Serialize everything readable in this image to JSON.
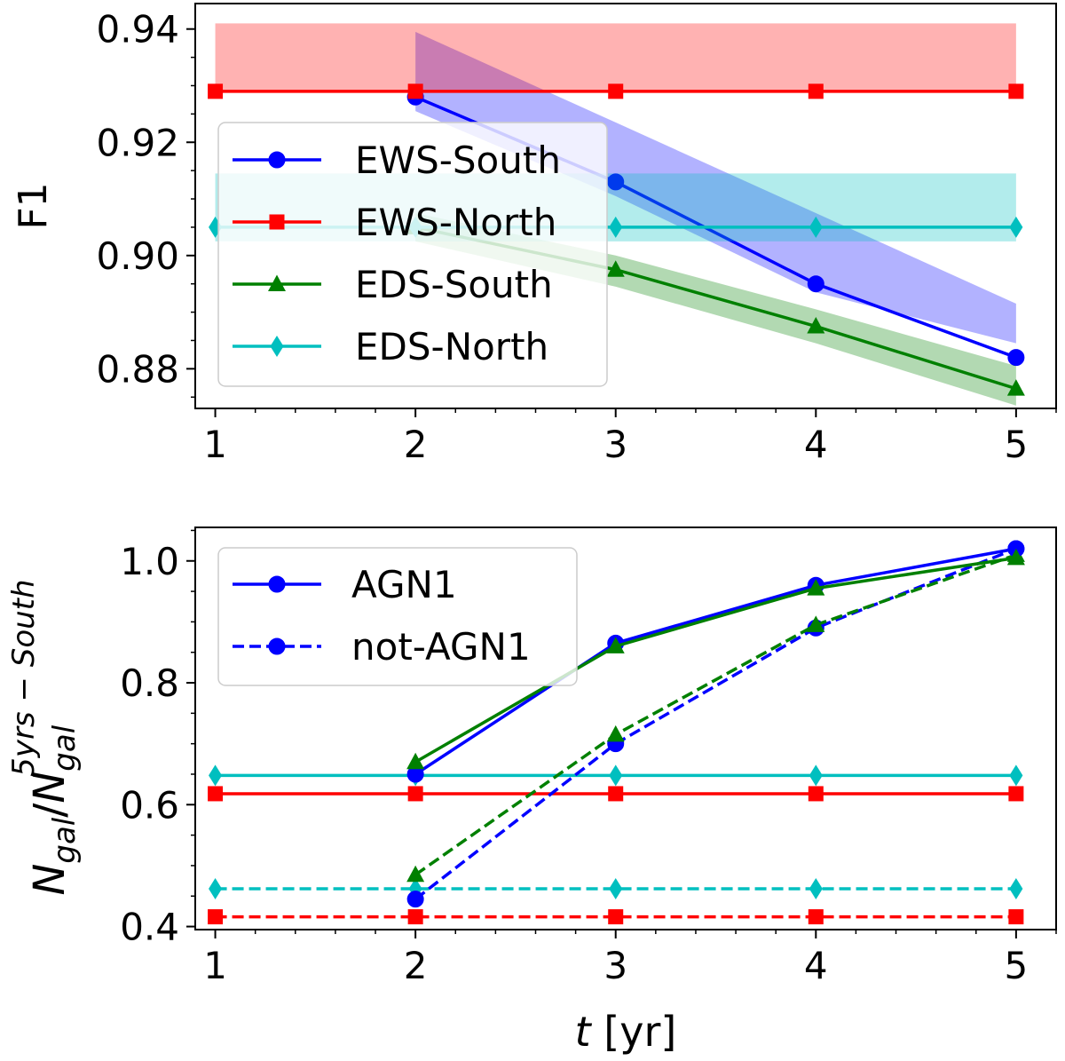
{
  "chart_data": [
    {
      "type": "line",
      "title": "",
      "xlabel": "",
      "ylabel": "F1",
      "xlim": [
        0.9,
        5.2
      ],
      "ylim": [
        0.873,
        0.9445
      ],
      "xticks": [
        1,
        2,
        3,
        4,
        5
      ],
      "xtick_labels": [
        "1",
        "2",
        "3",
        "4",
        "5"
      ],
      "yticks": [
        0.88,
        0.9,
        0.92,
        0.94
      ],
      "ytick_labels": [
        "0.88",
        "0.90",
        "0.92",
        "0.94"
      ],
      "legend_position": "center-left",
      "series": [
        {
          "name": "EWS-South",
          "color": "#0000ff",
          "marker": "circle",
          "linestyle": "solid",
          "x": [
            2,
            3,
            4,
            5
          ],
          "y": [
            0.928,
            0.913,
            0.895,
            0.882
          ],
          "band_low": [
            0.9255,
            0.9105,
            0.8935,
            0.8845
          ],
          "band_high": [
            0.9395,
            0.9235,
            0.9075,
            0.8915
          ]
        },
        {
          "name": "EWS-North",
          "color": "#ff0000",
          "marker": "square",
          "linestyle": "solid",
          "x": [
            1,
            2,
            3,
            4,
            5
          ],
          "y": [
            0.929,
            0.929,
            0.929,
            0.929,
            0.929
          ],
          "band_low": [
            0.929,
            0.929,
            0.929,
            0.929,
            0.929
          ],
          "band_high": [
            0.941,
            0.941,
            0.941,
            0.941,
            0.941
          ]
        },
        {
          "name": "EDS-South",
          "color": "#008000",
          "marker": "triangle",
          "linestyle": "solid",
          "x": [
            2,
            3,
            4,
            5
          ],
          "y": [
            0.905,
            0.8975,
            0.8875,
            0.8765
          ],
          "band_low": [
            0.9025,
            0.8945,
            0.8845,
            0.8735
          ],
          "band_high": [
            0.9075,
            0.9,
            0.8905,
            0.8805
          ]
        },
        {
          "name": "EDS-North",
          "color": "#00bfbf",
          "marker": "diamond",
          "linestyle": "solid",
          "x": [
            1,
            2,
            3,
            4,
            5
          ],
          "y": [
            0.905,
            0.905,
            0.905,
            0.905,
            0.905
          ],
          "band_low": [
            0.9025,
            0.9025,
            0.9025,
            0.9025,
            0.9025
          ],
          "band_high": [
            0.9145,
            0.9145,
            0.9145,
            0.9145,
            0.9145
          ]
        }
      ]
    },
    {
      "type": "line",
      "title": "",
      "xlabel": "t [yr]",
      "ylabel": "N_gal / N_gal^(5yrs−South)",
      "ylabel_parts": {
        "base": "N",
        "base_sub": "gal",
        "slash": "/",
        "denom": "N",
        "denom_sub": "gal",
        "denom_sup": "5yrs − South"
      },
      "xlabel_parts": {
        "var": "t",
        "unit": " [yr]"
      },
      "xlim": [
        0.9,
        5.2
      ],
      "ylim": [
        0.395,
        1.055
      ],
      "xticks": [
        1,
        2,
        3,
        4,
        5
      ],
      "xtick_labels": [
        "1",
        "2",
        "3",
        "4",
        "5"
      ],
      "yticks": [
        0.4,
        0.6,
        0.8,
        1.0
      ],
      "ytick_labels": [
        "0.4",
        "0.6",
        "0.8",
        "1.0"
      ],
      "legend_position": "upper-left",
      "legend": [
        {
          "label": "AGN1",
          "color": "#0000ff",
          "marker": "circle",
          "linestyle": "solid"
        },
        {
          "label": "not-AGN1",
          "color": "#0000ff",
          "marker": "circle",
          "linestyle": "dashed"
        }
      ],
      "series": [
        {
          "name": "EWS-South AGN1",
          "color": "#0000ff",
          "marker": "circle",
          "linestyle": "solid",
          "x": [
            2,
            3,
            4,
            5
          ],
          "y": [
            0.65,
            0.865,
            0.96,
            1.02
          ]
        },
        {
          "name": "EDS-South AGN1",
          "color": "#008000",
          "marker": "triangle",
          "linestyle": "solid",
          "x": [
            2,
            3,
            4,
            5
          ],
          "y": [
            0.67,
            0.86,
            0.955,
            1.005
          ]
        },
        {
          "name": "EDS-North AGN1",
          "color": "#00bfbf",
          "marker": "diamond",
          "linestyle": "solid",
          "x": [
            1,
            2,
            3,
            4,
            5
          ],
          "y": [
            0.648,
            0.648,
            0.648,
            0.648,
            0.648
          ]
        },
        {
          "name": "EWS-North AGN1",
          "color": "#ff0000",
          "marker": "square",
          "linestyle": "solid",
          "x": [
            1,
            2,
            3,
            4,
            5
          ],
          "y": [
            0.618,
            0.618,
            0.618,
            0.618,
            0.618
          ]
        },
        {
          "name": "EWS-South not-AGN1",
          "color": "#0000ff",
          "marker": "circle",
          "linestyle": "dashed",
          "x": [
            2,
            3,
            4,
            5
          ],
          "y": [
            0.445,
            0.7,
            0.89,
            1.02
          ]
        },
        {
          "name": "EDS-South not-AGN1",
          "color": "#008000",
          "marker": "triangle",
          "linestyle": "dashed",
          "x": [
            2,
            3,
            4,
            5
          ],
          "y": [
            0.485,
            0.715,
            0.895,
            1.01
          ]
        },
        {
          "name": "EDS-North not-AGN1",
          "color": "#00bfbf",
          "marker": "diamond",
          "linestyle": "dashed",
          "x": [
            1,
            2,
            3,
            4,
            5
          ],
          "y": [
            0.462,
            0.462,
            0.462,
            0.462,
            0.462
          ]
        },
        {
          "name": "EWS-North not-AGN1",
          "color": "#ff0000",
          "marker": "square",
          "linestyle": "dashed",
          "x": [
            1,
            2,
            3,
            4,
            5
          ],
          "y": [
            0.416,
            0.416,
            0.416,
            0.416,
            0.416
          ]
        }
      ]
    }
  ]
}
